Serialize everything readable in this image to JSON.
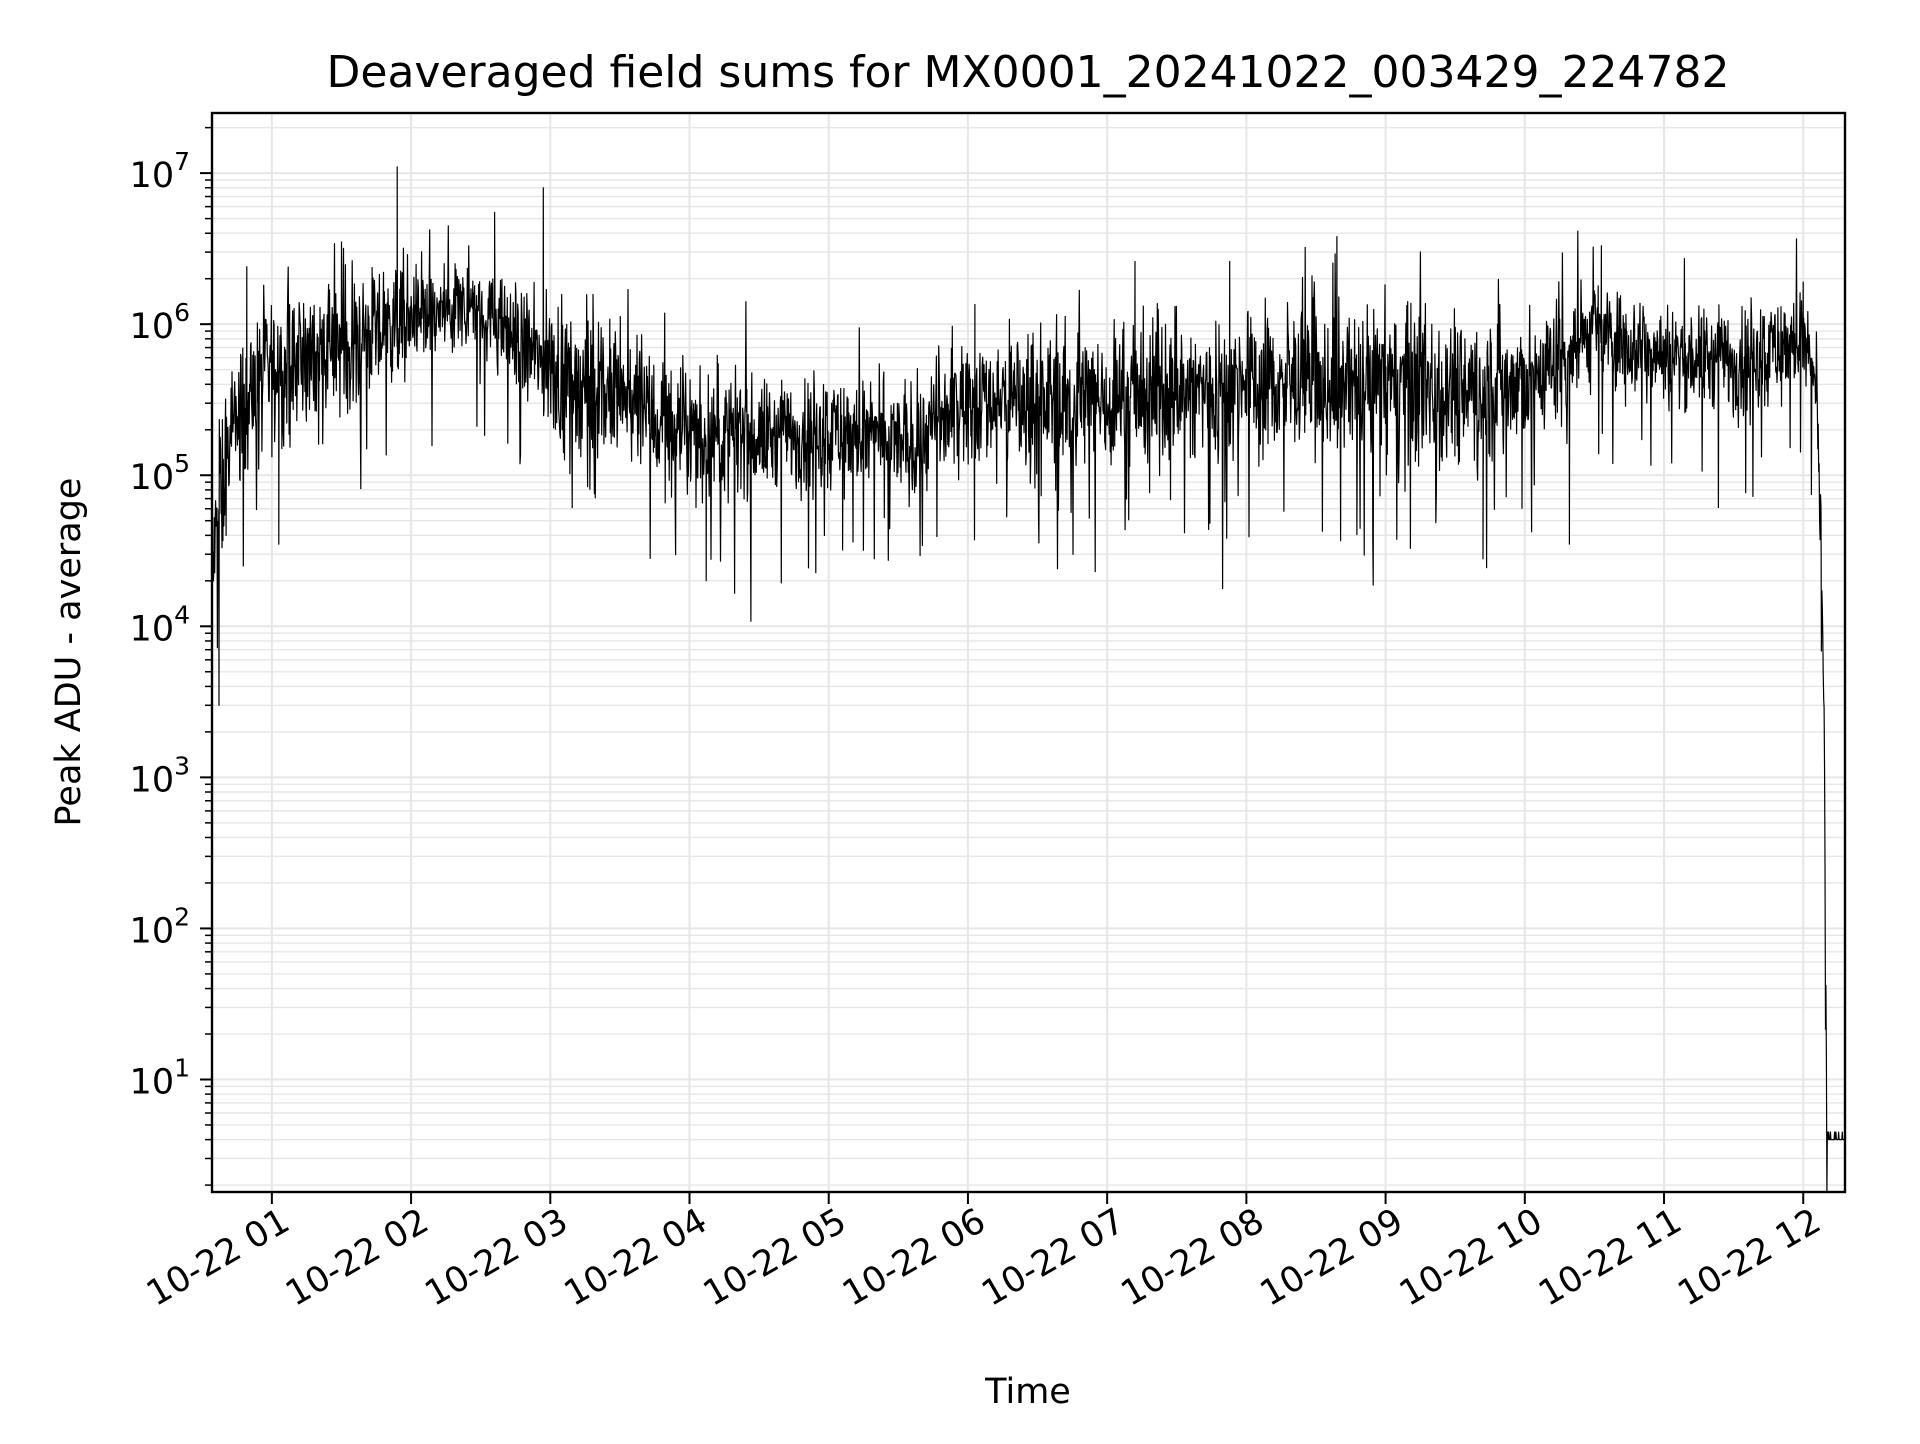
{
  "chart_data": {
    "type": "line",
    "title": "Deaveraged field sums for MX0001_20241022_003429_224782",
    "xlabel": "Time",
    "ylabel": "Peak ADU - average",
    "yscale": "log",
    "ylim": [
      1.8,
      25000000
    ],
    "xlim_hours": [
      0.57,
      12.3
    ],
    "grid": true,
    "grid_minor": true,
    "line_color": "#000000",
    "grid_color": "#e6e6e6",
    "x_ticks": [
      {
        "hour": 1,
        "label": "10-22 01"
      },
      {
        "hour": 2,
        "label": "10-22 02"
      },
      {
        "hour": 3,
        "label": "10-22 03"
      },
      {
        "hour": 4,
        "label": "10-22 04"
      },
      {
        "hour": 5,
        "label": "10-22 05"
      },
      {
        "hour": 6,
        "label": "10-22 06"
      },
      {
        "hour": 7,
        "label": "10-22 07"
      },
      {
        "hour": 8,
        "label": "10-22 08"
      },
      {
        "hour": 9,
        "label": "10-22 09"
      },
      {
        "hour": 10,
        "label": "10-22 10"
      },
      {
        "hour": 11,
        "label": "10-22 11"
      },
      {
        "hour": 12,
        "label": "10-22 12"
      }
    ],
    "y_ticks": [
      {
        "exp": 1,
        "base": "10",
        "sup": "1"
      },
      {
        "exp": 2,
        "base": "10",
        "sup": "2"
      },
      {
        "exp": 3,
        "base": "10",
        "sup": "3"
      },
      {
        "exp": 4,
        "base": "10",
        "sup": "4"
      },
      {
        "exp": 5,
        "base": "10",
        "sup": "5"
      },
      {
        "exp": 6,
        "base": "10",
        "sup": "6"
      },
      {
        "exp": 7,
        "base": "10",
        "sup": "7"
      }
    ],
    "series": [
      {
        "values_description": "dense noisy time series of deaveraged peak ADU values",
        "envelope": [
          {
            "hour": 0.57,
            "log_center": 4.3,
            "log_spread": 0.3
          },
          {
            "hour": 0.62,
            "log_center": 4.8,
            "log_spread": 0.5
          },
          {
            "hour": 0.75,
            "log_center": 5.4,
            "log_spread": 0.4
          },
          {
            "hour": 1.0,
            "log_center": 5.7,
            "log_spread": 0.45
          },
          {
            "hour": 1.5,
            "log_center": 5.85,
            "log_spread": 0.4
          },
          {
            "hour": 2.0,
            "log_center": 6.05,
            "log_spread": 0.3
          },
          {
            "hour": 2.5,
            "log_center": 6.1,
            "log_spread": 0.25
          },
          {
            "hour": 3.0,
            "log_center": 5.7,
            "log_spread": 0.4
          },
          {
            "hour": 3.5,
            "log_center": 5.5,
            "log_spread": 0.45
          },
          {
            "hour": 4.0,
            "log_center": 5.25,
            "log_spread": 0.4
          },
          {
            "hour": 4.5,
            "log_center": 5.25,
            "log_spread": 0.35
          },
          {
            "hour": 5.0,
            "log_center": 5.3,
            "log_spread": 0.35
          },
          {
            "hour": 5.6,
            "log_center": 5.2,
            "log_spread": 0.35
          },
          {
            "hour": 6.0,
            "log_center": 5.5,
            "log_spread": 0.4
          },
          {
            "hour": 7.0,
            "log_center": 5.5,
            "log_spread": 0.45
          },
          {
            "hour": 8.0,
            "log_center": 5.6,
            "log_spread": 0.45
          },
          {
            "hour": 9.0,
            "log_center": 5.6,
            "log_spread": 0.5
          },
          {
            "hour": 10.0,
            "log_center": 5.6,
            "log_spread": 0.45
          },
          {
            "hour": 10.5,
            "log_center": 5.95,
            "log_spread": 0.3
          },
          {
            "hour": 11.0,
            "log_center": 5.8,
            "log_spread": 0.3
          },
          {
            "hour": 11.5,
            "log_center": 5.75,
            "log_spread": 0.35
          },
          {
            "hour": 12.0,
            "log_center": 5.9,
            "log_spread": 0.3
          },
          {
            "hour": 12.1,
            "log_center": 5.5,
            "log_spread": 0.3
          },
          {
            "hour": 12.15,
            "log_center": 3.5,
            "log_spread": 0.3
          },
          {
            "hour": 12.17,
            "log_center": 0.6,
            "log_spread": 0.02
          },
          {
            "hour": 12.3,
            "log_center": 0.6,
            "log_spread": 0.02
          }
        ],
        "spikes": [
          {
            "hour": 1.9,
            "value": 11000000
          },
          {
            "hour": 2.95,
            "value": 8000000
          },
          {
            "hour": 1.5,
            "value": 3500000
          },
          {
            "hour": 2.6,
            "value": 5500000
          },
          {
            "hour": 8.65,
            "value": 3800000
          },
          {
            "hour": 10.55,
            "value": 3300000
          },
          {
            "hour": 0.82,
            "value": 2400000
          },
          {
            "hour": 4.12,
            "value": 20000
          },
          {
            "hour": 0.62,
            "value": 3000
          },
          {
            "hour": 1.05,
            "value": 35000
          },
          {
            "hour": 5.1,
            "value": 32000
          },
          {
            "hour": 6.05,
            "value": 1350000
          },
          {
            "hour": 7.2,
            "value": 2600000
          },
          {
            "hour": 7.88,
            "value": 2600000
          },
          {
            "hour": 9.7,
            "value": 28000
          },
          {
            "hour": 10.32,
            "value": 35000
          },
          {
            "hour": 12.0,
            "value": 1900000
          }
        ],
        "floor_value": 4
      }
    ]
  }
}
